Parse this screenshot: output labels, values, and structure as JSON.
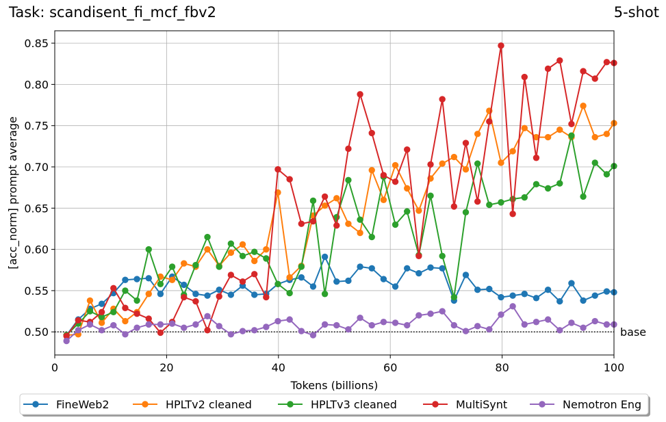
{
  "header": {
    "task_title": "Task: scandisent_fi_mcf_fbv2",
    "shot_label": "5-shot"
  },
  "chart_data": {
    "type": "line",
    "xlabel": "Tokens (billions)",
    "ylabel": "[acc_norm] prompt average",
    "xlim": [
      0,
      100
    ],
    "ylim": [
      0.472,
      0.865
    ],
    "xticks": [
      0,
      20,
      40,
      60,
      80,
      100
    ],
    "yticks": [
      0.5,
      0.55,
      0.6,
      0.65,
      0.7,
      0.75,
      0.8,
      0.85
    ],
    "grid": true,
    "legend_position": "bottom-outside",
    "baseline": {
      "value": 0.5,
      "label": "base"
    },
    "x": [
      2.1,
      4.2,
      6.3,
      8.4,
      10.5,
      12.6,
      14.7,
      16.8,
      18.9,
      21.0,
      23.1,
      25.2,
      27.3,
      29.4,
      31.5,
      33.6,
      35.7,
      37.8,
      39.9,
      42.0,
      44.1,
      46.2,
      48.3,
      50.4,
      52.5,
      54.6,
      56.7,
      58.8,
      60.9,
      63.0,
      65.1,
      67.2,
      69.3,
      71.4,
      73.5,
      75.6,
      77.7,
      79.8,
      81.9,
      84.0,
      86.1,
      88.2,
      90.3,
      92.4,
      94.5,
      96.6,
      98.7,
      100.0
    ],
    "series": [
      {
        "name": "FineWeb2",
        "color": "#1f77b4",
        "values": [
          0.496,
          0.515,
          0.528,
          0.534,
          0.547,
          0.563,
          0.564,
          0.565,
          0.546,
          0.567,
          0.557,
          0.546,
          0.544,
          0.551,
          0.545,
          0.556,
          0.545,
          0.546,
          0.558,
          0.563,
          0.566,
          0.555,
          0.591,
          0.561,
          0.562,
          0.579,
          0.577,
          0.564,
          0.555,
          0.577,
          0.571,
          0.578,
          0.577,
          0.538,
          0.569,
          0.551,
          0.552,
          0.542,
          0.544,
          0.546,
          0.541,
          0.551,
          0.537,
          0.559,
          0.538,
          0.544,
          0.549,
          0.548
        ]
      },
      {
        "name": "HPLTv2 cleaned",
        "color": "#ff7f0e",
        "values": [
          0.496,
          0.497,
          0.538,
          0.511,
          0.528,
          0.513,
          0.524,
          0.546,
          0.567,
          0.563,
          0.583,
          0.579,
          0.6,
          0.58,
          0.596,
          0.606,
          0.586,
          0.6,
          0.669,
          0.566,
          0.58,
          0.641,
          0.653,
          0.662,
          0.631,
          0.62,
          0.696,
          0.66,
          0.702,
          0.674,
          0.647,
          0.686,
          0.704,
          0.712,
          0.697,
          0.74,
          0.768,
          0.705,
          0.719,
          0.747,
          0.736,
          0.736,
          0.745,
          0.736,
          0.774,
          0.736,
          0.74,
          0.753
        ]
      },
      {
        "name": "HPLTv3 cleaned",
        "color": "#2ca02c",
        "values": [
          0.496,
          0.51,
          0.525,
          0.518,
          0.524,
          0.55,
          0.538,
          0.6,
          0.558,
          0.579,
          0.545,
          0.581,
          0.615,
          0.579,
          0.607,
          0.592,
          0.597,
          0.589,
          0.558,
          0.547,
          0.579,
          0.659,
          0.546,
          0.639,
          0.684,
          0.636,
          0.615,
          0.688,
          0.63,
          0.646,
          0.593,
          0.665,
          0.592,
          0.542,
          0.645,
          0.704,
          0.654,
          0.657,
          0.661,
          0.663,
          0.679,
          0.674,
          0.68,
          0.738,
          0.664,
          0.705,
          0.691,
          0.701
        ]
      },
      {
        "name": "MultiSynt",
        "color": "#d62728",
        "values": [
          0.495,
          0.514,
          0.512,
          0.524,
          0.553,
          0.529,
          0.522,
          0.516,
          0.499,
          0.512,
          0.542,
          0.537,
          0.502,
          0.543,
          0.569,
          0.561,
          0.57,
          0.542,
          0.697,
          0.685,
          0.631,
          0.634,
          0.664,
          0.629,
          0.722,
          0.788,
          0.741,
          0.69,
          0.682,
          0.721,
          0.592,
          0.703,
          0.782,
          0.652,
          0.729,
          0.658,
          0.755,
          0.847,
          0.643,
          0.809,
          0.711,
          0.819,
          0.829,
          0.752,
          0.816,
          0.807,
          0.827,
          0.826
        ]
      },
      {
        "name": "Nemotron Eng",
        "color": "#9467bd",
        "values": [
          0.489,
          0.502,
          0.509,
          0.502,
          0.508,
          0.497,
          0.505,
          0.509,
          0.509,
          0.51,
          0.505,
          0.509,
          0.519,
          0.507,
          0.497,
          0.501,
          0.502,
          0.506,
          0.513,
          0.515,
          0.501,
          0.496,
          0.509,
          0.508,
          0.503,
          0.517,
          0.508,
          0.512,
          0.511,
          0.508,
          0.52,
          0.522,
          0.525,
          0.508,
          0.501,
          0.507,
          0.503,
          0.521,
          0.531,
          0.509,
          0.512,
          0.515,
          0.502,
          0.511,
          0.505,
          0.513,
          0.509,
          0.509
        ]
      }
    ]
  }
}
